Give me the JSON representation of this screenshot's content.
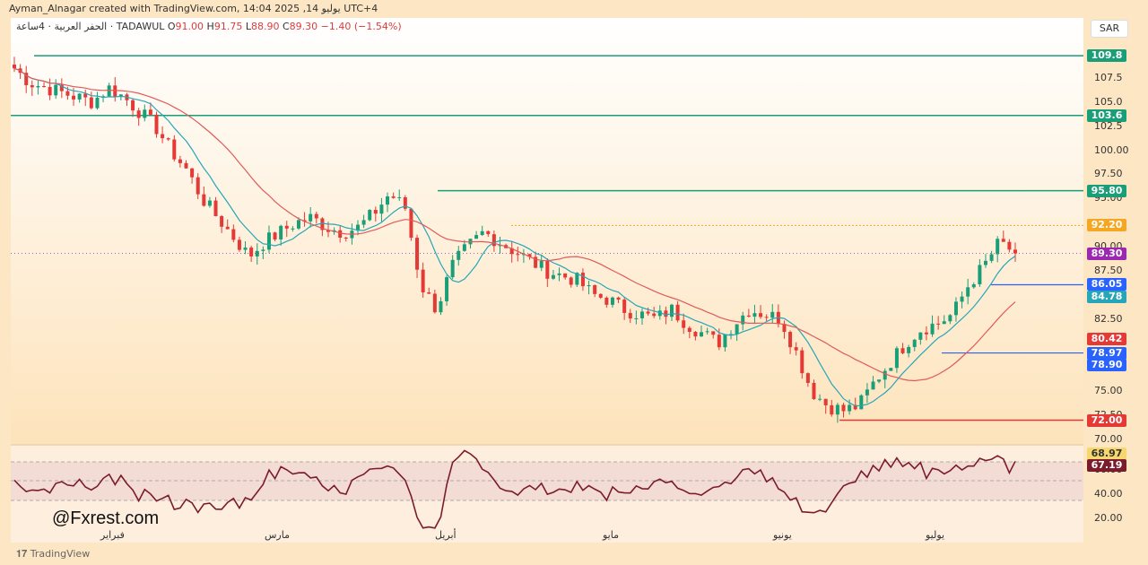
{
  "header": {
    "credit": "Ayman_Alnagar created with TradingView.com, 14:04 2025 ,يوليو 14 UTC+4",
    "symbol": "الحفر العربية · 4ساعة · TADAWUL",
    "open_label": "O",
    "open": "91.00",
    "high_label": "H",
    "high": "91.75",
    "low_label": "L",
    "low": "88.90",
    "close_label": "C",
    "close": "89.30",
    "change": "−1.40 (−1.54%)"
  },
  "currency_button": "SAR",
  "price_axis": [
    "107.5",
    "105.0",
    "102.5",
    "100.00",
    "97.50",
    "95.00",
    "90.00",
    "87.50",
    "82.50",
    "75.00",
    "72.50",
    "70.00"
  ],
  "price_badges": [
    {
      "text": "109.8",
      "color": "#1a9e77"
    },
    {
      "text": "103.6",
      "color": "#1a9e77"
    },
    {
      "text": "95.80",
      "color": "#1a9e77"
    },
    {
      "text": "92.20",
      "color": "#f5a623"
    },
    {
      "text": "89.30",
      "color": "#9c27b0"
    },
    {
      "text": "86.05",
      "color": "#2962ff"
    },
    {
      "text": "84.78",
      "color": "#26a6b8"
    },
    {
      "text": "80.42",
      "color": "#e53935"
    },
    {
      "text": "78.97",
      "color": "#2962ff"
    },
    {
      "text": "78.90",
      "color": "#2962ff"
    },
    {
      "text": "72.00",
      "color": "#e53935"
    }
  ],
  "rsi_axis": [
    "60.00",
    "40.00",
    "20.00"
  ],
  "rsi_badges": [
    {
      "text": "68.97",
      "color": "#f5d76e",
      "textcolor": "#333"
    },
    {
      "text": "67.19",
      "color": "#7b1c2c",
      "textcolor": "#fff"
    }
  ],
  "months": [
    "فبراير",
    "مارس",
    "أبريل",
    "مايو",
    "يونيو",
    "يوليو"
  ],
  "watermark": "@Fxrest.com",
  "footer_logo": "TradingView",
  "colors": {
    "background": "#fce6c4",
    "up_candle": "#1a9e77",
    "down_candle": "#e53935",
    "ma_fast": "#26a6b8",
    "ma_slow": "#e05a5a",
    "rsi_line": "#7b1c2c"
  },
  "chart_data": {
    "type": "candlestick",
    "levels": [
      109.8,
      103.6,
      95.8,
      92.2,
      86.05,
      78.97,
      72.0
    ],
    "last_price": 89.3,
    "ma_fast_last": 84.78,
    "ma_slow_last": 80.42,
    "rsi_last": 67.19,
    "rsi_ma_last": 68.97,
    "close_path": [
      108.5,
      107.0,
      106.5,
      106.0,
      105.5,
      105.0,
      106.5,
      105.5,
      104.0,
      102.5,
      100.0,
      98.0,
      95.0,
      93.0,
      91.0,
      89.0,
      90.5,
      91.5,
      92.5,
      93.0,
      92.0,
      91.5,
      92.0,
      93.5,
      95.5,
      94.0,
      86.0,
      83.5,
      88.0,
      90.0,
      91.5,
      90.5,
      89.5,
      88.5,
      87.5,
      87.0,
      86.5,
      85.0,
      84.5,
      83.5,
      83.0,
      82.5,
      83.5,
      82.0,
      81.0,
      80.0,
      82.0,
      83.5,
      83.0,
      82.5,
      79.0,
      75.0,
      73.5,
      73.0,
      73.5,
      76.0,
      78.0,
      80.0,
      81.5,
      82.0,
      83.0,
      86.0,
      88.0,
      90.5,
      89.3
    ]
  }
}
